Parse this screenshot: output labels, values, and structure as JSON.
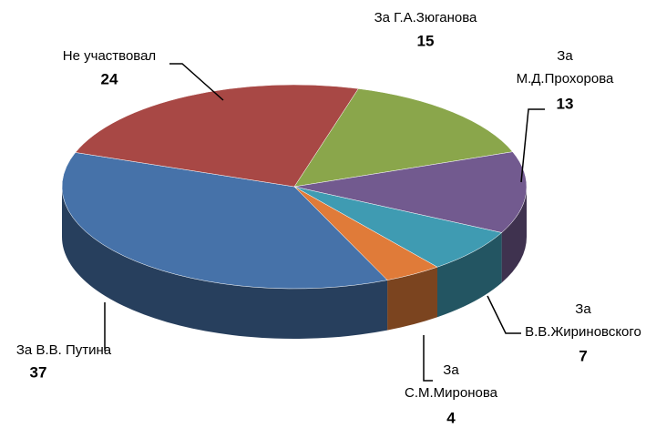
{
  "chart_data": {
    "type": "pie",
    "categories": [
      "За Г.А.Зюганова",
      "За\nМ.Д.Прохорова",
      "За\nВ.В.Жириновского",
      "За\nС.М.Миронова",
      "За В.В. Путина",
      "Не участвовал"
    ],
    "values": [
      15,
      13,
      7,
      4,
      37,
      24
    ],
    "colors": [
      "#8aa64b",
      "#725a8f",
      "#3f9bb2",
      "#e07b39",
      "#4672a9",
      "#a84845"
    ]
  }
}
